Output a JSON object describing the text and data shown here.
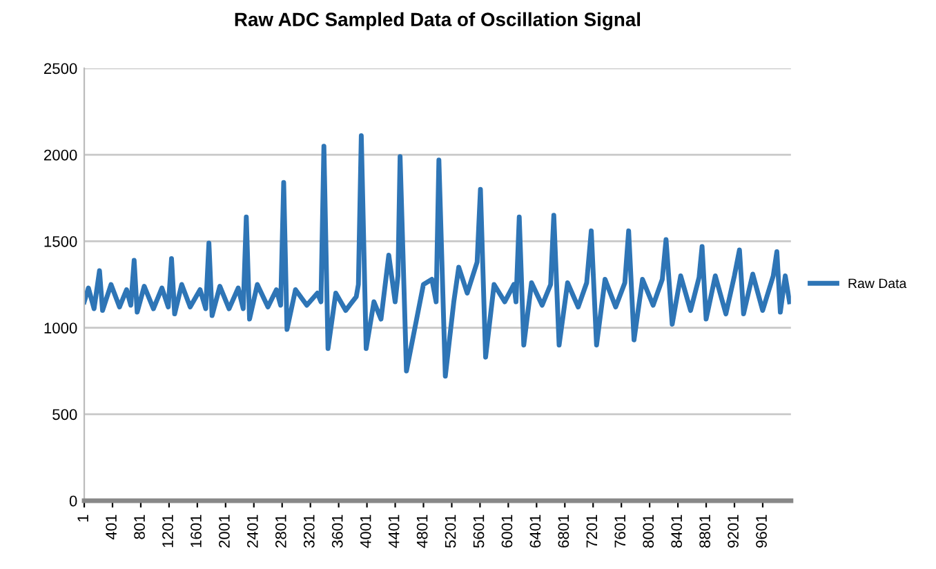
{
  "chart_data": {
    "type": "line",
    "title": "Raw ADC Sampled Data of Oscillation Signal",
    "xlim": [
      1,
      10000
    ],
    "xticks": [
      1,
      401,
      801,
      1201,
      1601,
      2001,
      2401,
      2801,
      3201,
      3601,
      4001,
      4401,
      4801,
      5201,
      5601,
      6001,
      6401,
      6801,
      7201,
      7601,
      8001,
      8401,
      8801,
      9201,
      9601
    ],
    "ylim": [
      0,
      2500
    ],
    "yticks": [
      0,
      500,
      1000,
      1500,
      2000,
      2500
    ],
    "grid": "y",
    "legend": "right",
    "marker": "none",
    "line_style": "solid",
    "series": [
      {
        "name": "Raw Data",
        "color": "#2e75b6",
        "x": [
          1,
          60,
          140,
          217,
          260,
          380,
          500,
          600,
          660,
          707,
          750,
          850,
          980,
          1100,
          1190,
          1236,
          1280,
          1380,
          1500,
          1640,
          1720,
          1765,
          1810,
          1920,
          2050,
          2180,
          2250,
          2294,
          2340,
          2450,
          2600,
          2720,
          2780,
          2823,
          2870,
          2990,
          3150,
          3300,
          3350,
          3392,
          3450,
          3560,
          3700,
          3850,
          3880,
          3921,
          3990,
          4100,
          4200,
          4310,
          4400,
          4440,
          4470,
          4560,
          4680,
          4800,
          4920,
          4980,
          5019,
          5110,
          5230,
          5300,
          5420,
          5560,
          5607,
          5680,
          5800,
          5950,
          6080,
          6110,
          6156,
          6220,
          6330,
          6480,
          6600,
          6645,
          6720,
          6840,
          6990,
          7110,
          7175,
          7250,
          7370,
          7520,
          7650,
          7704,
          7780,
          7900,
          8050,
          8180,
          8233,
          8320,
          8440,
          8580,
          8700,
          8743,
          8800,
          8930,
          9080,
          9200,
          9272,
          9330,
          9460,
          9600,
          9750,
          9801,
          9850,
          9920,
          9980
        ],
        "values": [
          1150,
          1230,
          1110,
          1330,
          1100,
          1250,
          1120,
          1220,
          1130,
          1390,
          1090,
          1240,
          1110,
          1230,
          1120,
          1400,
          1080,
          1250,
          1120,
          1220,
          1110,
          1490,
          1070,
          1240,
          1110,
          1230,
          1110,
          1640,
          1050,
          1250,
          1120,
          1220,
          1130,
          1840,
          990,
          1220,
          1130,
          1200,
          1150,
          2050,
          880,
          1200,
          1100,
          1180,
          1250,
          2110,
          880,
          1150,
          1050,
          1420,
          1150,
          1300,
          1990,
          750,
          1000,
          1250,
          1280,
          1150,
          1970,
          720,
          1150,
          1350,
          1200,
          1380,
          1800,
          830,
          1250,
          1150,
          1250,
          1150,
          1640,
          900,
          1260,
          1130,
          1250,
          1650,
          900,
          1260,
          1120,
          1260,
          1560,
          900,
          1280,
          1120,
          1260,
          1560,
          930,
          1280,
          1130,
          1280,
          1510,
          1020,
          1300,
          1100,
          1290,
          1470,
          1050,
          1300,
          1080,
          1300,
          1450,
          1080,
          1310,
          1100,
          1300,
          1440,
          1090,
          1300,
          1150
        ]
      }
    ]
  }
}
